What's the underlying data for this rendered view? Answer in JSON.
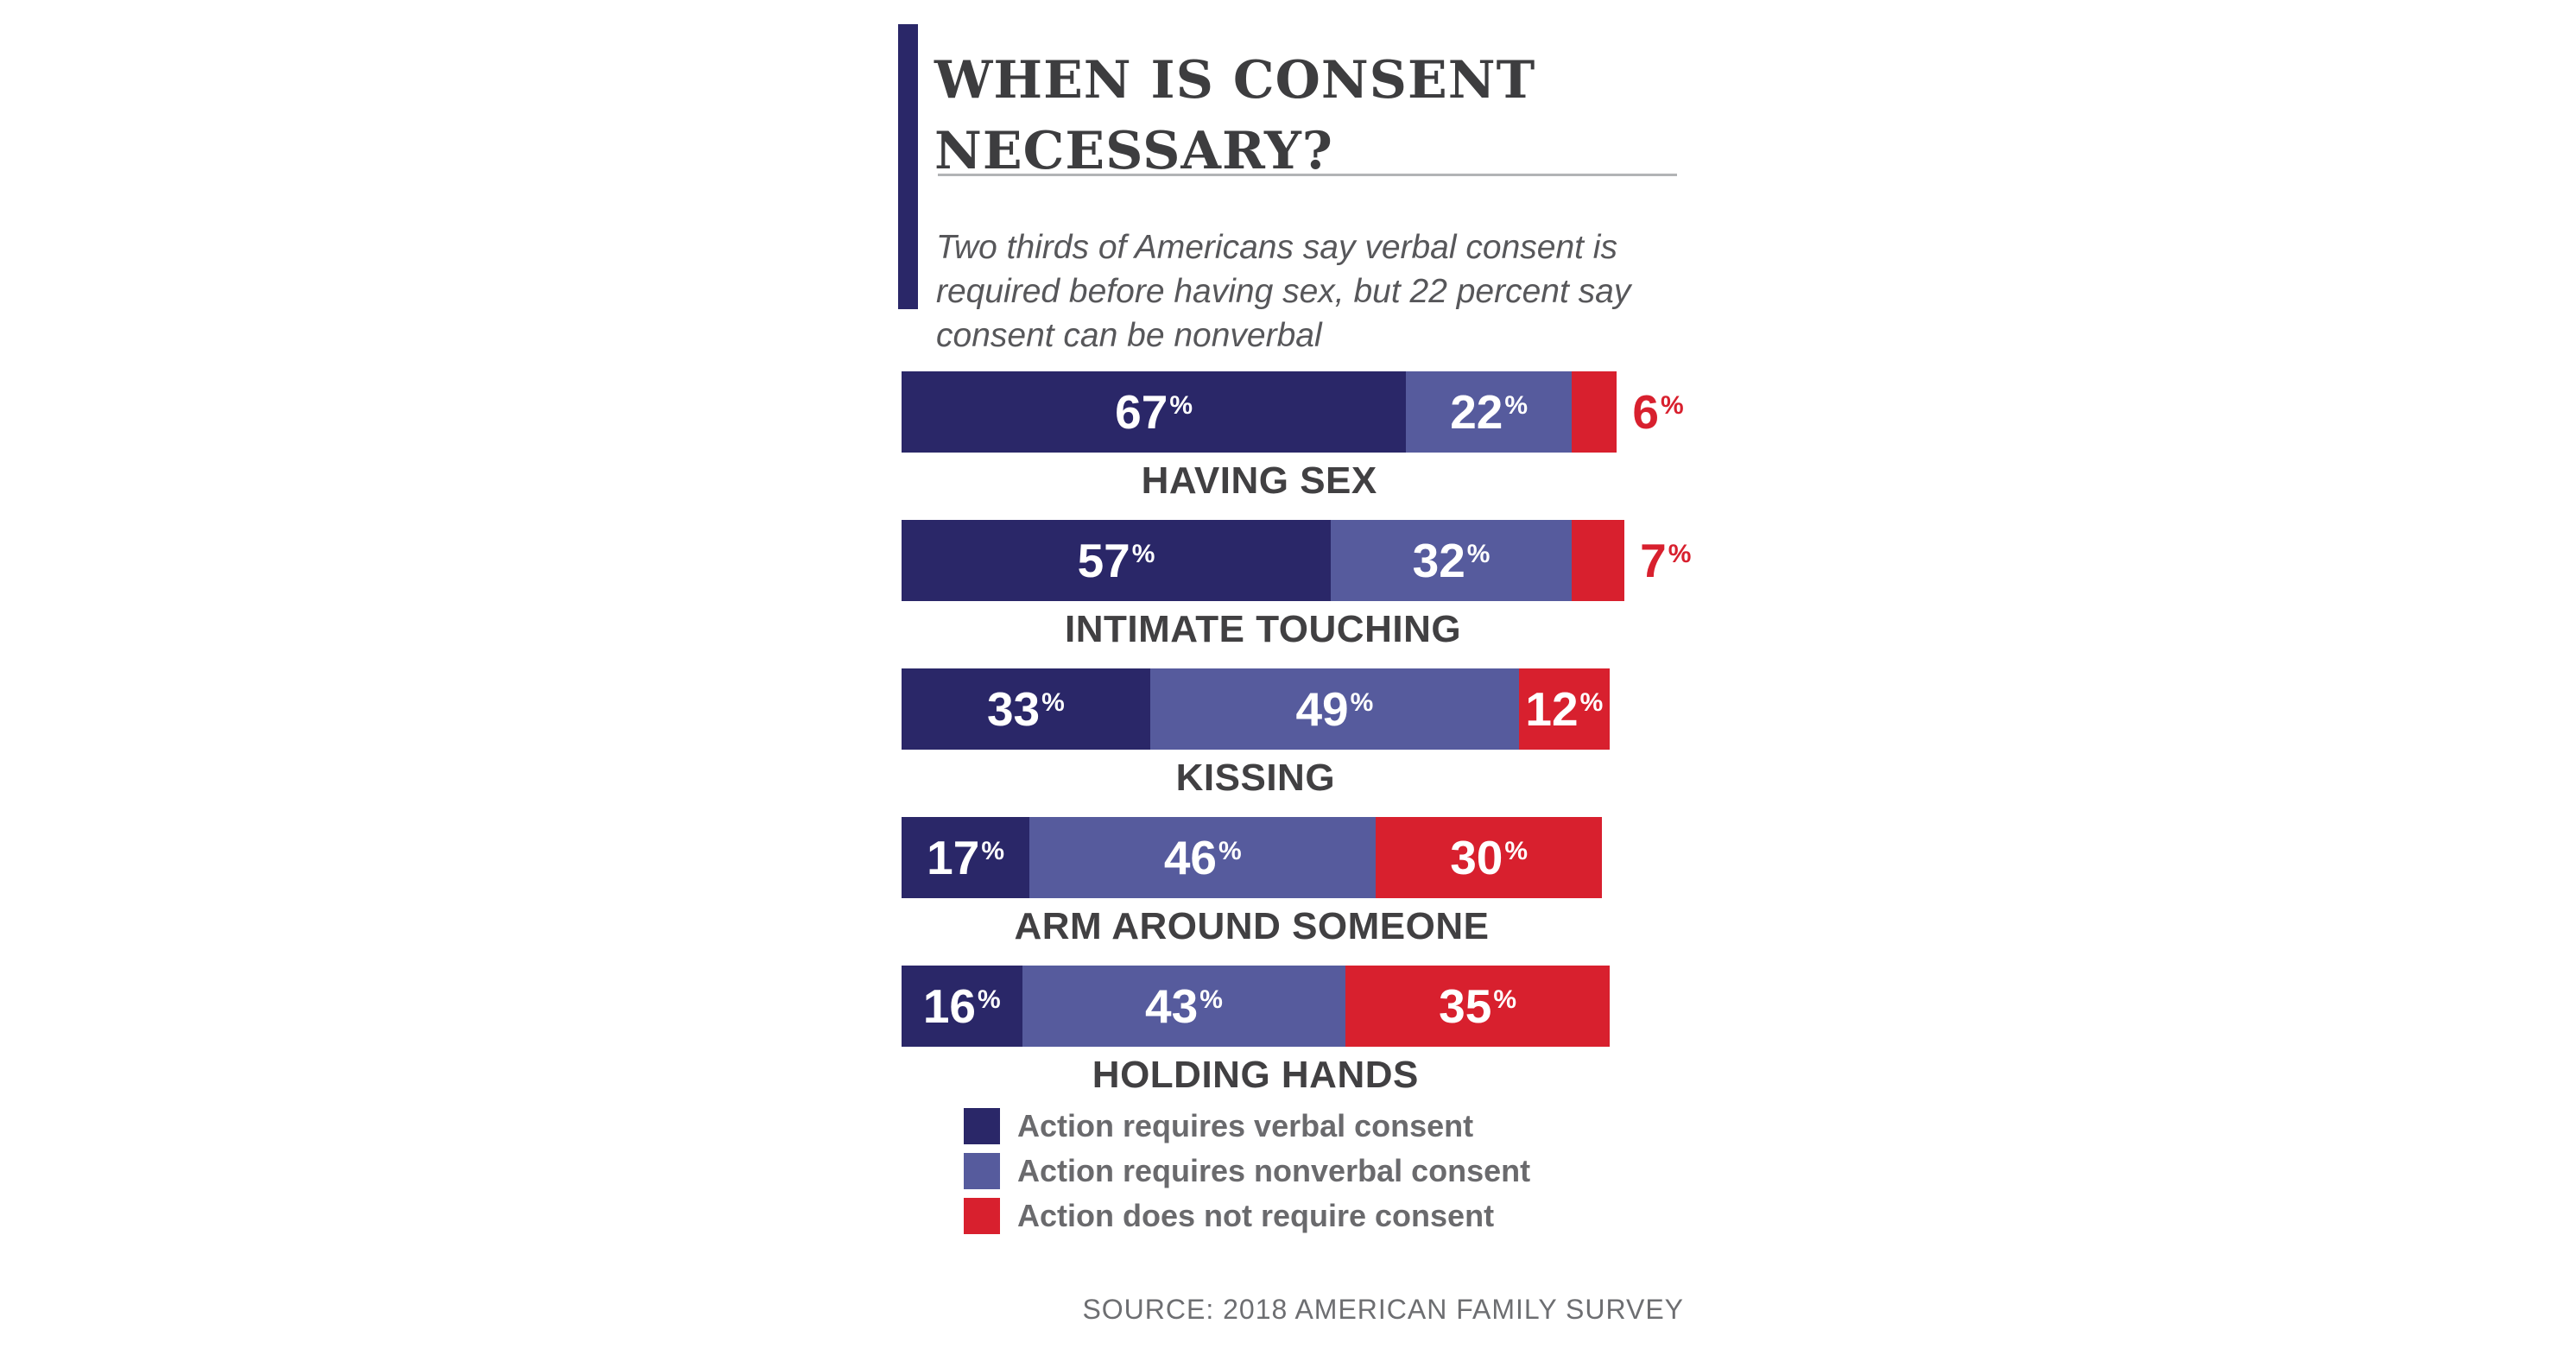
{
  "colors": {
    "verbal": "#2a2768",
    "nonverbal": "#565b9d",
    "no_consent": "#d8202e",
    "title_text": "#3d3d3f",
    "subtitle_text": "#57575a",
    "category_text": "#414042",
    "legend_text": "#6a6a6d",
    "source_text": "#6d6e71",
    "divider": "#b2b4b6",
    "accent_bar": "#2a2768"
  },
  "chart_data": {
    "type": "bar",
    "orientation": "horizontal",
    "stacked": true,
    "title": "WHEN IS CONSENT NECESSARY?",
    "subtitle": "Two thirds of Americans say verbal consent is required before having sex, but 22 percent say consent can be nonverbal",
    "unit": "%",
    "categories": [
      "HAVING SEX",
      "INTIMATE TOUCHING",
      "KISSING",
      "ARM AROUND SOMEONE",
      "HOLDING HANDS"
    ],
    "series": [
      {
        "name": "Action requires verbal consent",
        "slug": "verbal",
        "color": "#2a2768",
        "values": [
          67,
          57,
          33,
          17,
          16
        ]
      },
      {
        "name": "Action requires nonverbal consent",
        "slug": "nonverbal",
        "color": "#565b9d",
        "values": [
          22,
          32,
          49,
          46,
          43
        ]
      },
      {
        "name": "Action does not require consent",
        "slug": "no-consent",
        "color": "#d8202e",
        "values": [
          6,
          7,
          12,
          30,
          35
        ]
      }
    ],
    "value_labels_shown": true,
    "last_segment_label_outside": [
      true,
      true,
      false,
      false,
      false
    ],
    "legend_position": "bottom-left",
    "grid": false,
    "axis_ticks": "none",
    "source": "SOURCE: 2018 AMERICAN FAMILY SURVEY"
  }
}
